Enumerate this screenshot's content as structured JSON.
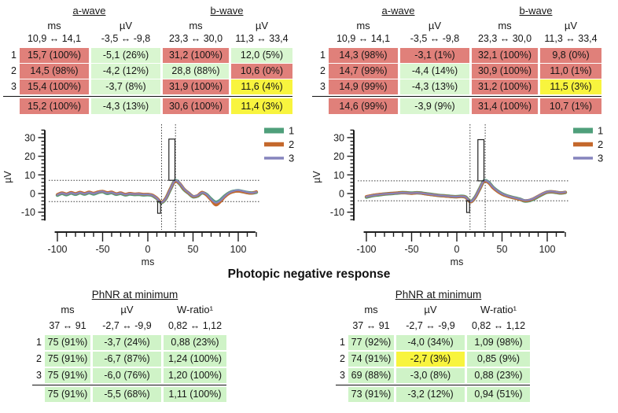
{
  "section_title": "Photopic negative response",
  "status_colors": {
    "red": "#e0807a",
    "green": "#d9f6d0",
    "yellow": "#f8f43e",
    "green_phnr": "#cff3c7"
  },
  "wave_tables": [
    {
      "groups": [
        "a-wave",
        "b-wave"
      ],
      "units": [
        "ms",
        "µV",
        "ms",
        "µV"
      ],
      "ranges": [
        "10,9 ↔ 14,1",
        "-3,5 ↔ -9,8",
        "23,3 ↔ 30,0",
        "11,3 ↔ 33,4"
      ],
      "rows": [
        {
          "num": "1",
          "cells": [
            {
              "text": "15,7 (100%)",
              "status": "red"
            },
            {
              "text": "-5,1 (26%)",
              "status": "green"
            },
            {
              "text": "31,2 (100%)",
              "status": "red"
            },
            {
              "text": "12,0 (5%)",
              "status": "green"
            }
          ]
        },
        {
          "num": "2",
          "cells": [
            {
              "text": "14,5 (98%)",
              "status": "red"
            },
            {
              "text": "-4,2 (12%)",
              "status": "green"
            },
            {
              "text": "28,8 (88%)",
              "status": "green"
            },
            {
              "text": "10,6 (0%)",
              "status": "red"
            }
          ]
        },
        {
          "num": "3",
          "cells": [
            {
              "text": "15,4 (100%)",
              "status": "red"
            },
            {
              "text": "-3,7 (8%)",
              "status": "green"
            },
            {
              "text": "31,9 (100%)",
              "status": "red"
            },
            {
              "text": "11,6 (4%)",
              "status": "yellow"
            }
          ]
        }
      ],
      "summary": [
        {
          "text": "15,2 (100%)",
          "status": "red"
        },
        {
          "text": "-4,3 (13%)",
          "status": "green"
        },
        {
          "text": "30,6 (100%)",
          "status": "red"
        },
        {
          "text": "11,4 (3%)",
          "status": "yellow"
        }
      ]
    },
    {
      "groups": [
        "a-wave",
        "b-wave"
      ],
      "units": [
        "ms",
        "µV",
        "ms",
        "µV"
      ],
      "ranges": [
        "10,9 ↔ 14,1",
        "-3,5 ↔ -9,8",
        "23,3 ↔ 30,0",
        "11,3 ↔ 33,4"
      ],
      "rows": [
        {
          "num": "1",
          "cells": [
            {
              "text": "14,3 (98%)",
              "status": "red"
            },
            {
              "text": "-3,1 (1%)",
              "status": "red"
            },
            {
              "text": "32,1 (100%)",
              "status": "red"
            },
            {
              "text": "9,8 (0%)",
              "status": "red"
            }
          ]
        },
        {
          "num": "2",
          "cells": [
            {
              "text": "14,7 (99%)",
              "status": "red"
            },
            {
              "text": "-4,4 (14%)",
              "status": "green"
            },
            {
              "text": "30,9 (100%)",
              "status": "red"
            },
            {
              "text": "11,0 (1%)",
              "status": "red"
            }
          ]
        },
        {
          "num": "3",
          "cells": [
            {
              "text": "14,9 (99%)",
              "status": "red"
            },
            {
              "text": "-4,3 (13%)",
              "status": "green"
            },
            {
              "text": "31,2 (100%)",
              "status": "red"
            },
            {
              "text": "11,5 (3%)",
              "status": "yellow"
            }
          ]
        }
      ],
      "summary": [
        {
          "text": "14,6 (99%)",
          "status": "red"
        },
        {
          "text": "-3,9 (9%)",
          "status": "green"
        },
        {
          "text": "31,4 (100%)",
          "status": "red"
        },
        {
          "text": "10,7 (1%)",
          "status": "red"
        }
      ]
    }
  ],
  "phnr_tables": [
    {
      "title": "PhNR at minimum",
      "units": [
        "ms",
        "µV",
        "W-ratio¹"
      ],
      "ranges": [
        "37 ↔ 91",
        "-2,7 ↔ -9,9",
        "0,82 ↔ 1,12"
      ],
      "rows": [
        {
          "num": "1",
          "cells": [
            {
              "text": "75 (91%)",
              "status": "green_phnr"
            },
            {
              "text": "-3,7 (24%)",
              "status": "green_phnr"
            },
            {
              "text": "0,88 (23%)",
              "status": "green_phnr"
            }
          ]
        },
        {
          "num": "2",
          "cells": [
            {
              "text": "75 (91%)",
              "status": "green_phnr"
            },
            {
              "text": "-6,7 (87%)",
              "status": "green_phnr"
            },
            {
              "text": "1,24 (100%)",
              "status": "green_phnr"
            }
          ]
        },
        {
          "num": "3",
          "cells": [
            {
              "text": "75 (91%)",
              "status": "green_phnr"
            },
            {
              "text": "-6,0 (76%)",
              "status": "green_phnr"
            },
            {
              "text": "1,20 (100%)",
              "status": "green_phnr"
            }
          ]
        }
      ],
      "summary": [
        {
          "text": "75 (91%)",
          "status": "green_phnr"
        },
        {
          "text": "-5,5 (68%)",
          "status": "green_phnr"
        },
        {
          "text": "1,11 (100%)",
          "status": "green_phnr"
        }
      ]
    },
    {
      "title": "PhNR at minimum",
      "units": [
        "ms",
        "µV",
        "W-ratio¹"
      ],
      "ranges": [
        "37 ↔ 91",
        "-2,7 ↔ -9,9",
        "0,82 ↔ 1,12"
      ],
      "rows": [
        {
          "num": "1",
          "cells": [
            {
              "text": "77 (92%)",
              "status": "green_phnr"
            },
            {
              "text": "-4,0 (34%)",
              "status": "green_phnr"
            },
            {
              "text": "1,09 (98%)",
              "status": "green_phnr"
            }
          ]
        },
        {
          "num": "2",
          "cells": [
            {
              "text": "74 (91%)",
              "status": "green_phnr"
            },
            {
              "text": "-2,7 (3%)",
              "status": "yellow"
            },
            {
              "text": "0,85 (9%)",
              "status": "green_phnr"
            }
          ]
        },
        {
          "num": "3",
          "cells": [
            {
              "text": "69 (88%)",
              "status": "green_phnr"
            },
            {
              "text": "-3,0 (8%)",
              "status": "green_phnr"
            },
            {
              "text": "0,88 (23%)",
              "status": "green_phnr"
            }
          ]
        }
      ],
      "summary": [
        {
          "text": "73 (91%)",
          "status": "green_phnr"
        },
        {
          "text": "-3,2 (12%)",
          "status": "green_phnr"
        },
        {
          "text": "0,94 (51%)",
          "status": "green_phnr"
        }
      ]
    }
  ],
  "chart_data": [
    {
      "type": "line",
      "title": "",
      "xlabel": "ms",
      "ylabel": "µV",
      "xlim": [
        -100,
        120
      ],
      "ylim": [
        -14,
        34
      ],
      "xticks": [
        -100,
        -50,
        0,
        50,
        100
      ],
      "yticks": [
        -10,
        0,
        10,
        20,
        30
      ],
      "grid": false,
      "legend_position": "upper right",
      "x": [
        -100,
        -95,
        -90,
        -85,
        -80,
        -75,
        -70,
        -65,
        -60,
        -55,
        -50,
        -45,
        -40,
        -35,
        -30,
        -25,
        -20,
        -15,
        -10,
        -5,
        0,
        5,
        10,
        15,
        20,
        25,
        30,
        35,
        40,
        45,
        50,
        55,
        60,
        65,
        70,
        75,
        80,
        85,
        90,
        95,
        100,
        105,
        110,
        115,
        120
      ],
      "series": [
        {
          "name": "1",
          "color": "#4f9f7b",
          "y": [
            -0.9,
            0.1,
            -0.6,
            0.3,
            -0.4,
            0.4,
            -0.3,
            0.5,
            -0.2,
            0.6,
            1.0,
            0.1,
            0.5,
            -0.4,
            0.1,
            -0.7,
            -0.2,
            -0.5,
            -0.4,
            -0.7,
            -0.6,
            -1.0,
            -2.6,
            -4.8,
            -2.6,
            2.4,
            6.8,
            5.3,
            2.2,
            0.2,
            -1.7,
            -1.3,
            0.4,
            -0.6,
            -3.0,
            -4.7,
            -3.7,
            -1.4,
            0.3,
            1.2,
            1.5,
            1.0,
            0.5,
            0.3,
            0.7
          ]
        },
        {
          "name": "2",
          "color": "#c4682c",
          "y": [
            -0.5,
            0.4,
            -0.2,
            0.6,
            0.0,
            0.7,
            0.1,
            0.8,
            0.2,
            0.9,
            1.2,
            0.5,
            0.8,
            -0.1,
            0.4,
            -0.4,
            0.1,
            -0.2,
            -0.1,
            -0.4,
            -0.4,
            -0.8,
            -2.4,
            -4.6,
            -2.4,
            2.6,
            6.5,
            5.5,
            2.4,
            0.3,
            -1.5,
            -1.1,
            0.7,
            -0.9,
            -3.5,
            -6.1,
            -4.5,
            -1.8,
            0.1,
            1.0,
            1.3,
            0.9,
            0.4,
            0.2,
            1.0
          ]
        },
        {
          "name": "3",
          "color": "#8584bd",
          "y": [
            -0.7,
            0.2,
            -0.4,
            0.4,
            -0.2,
            0.5,
            -0.1,
            0.6,
            0.0,
            0.7,
            1.1,
            0.3,
            0.6,
            -0.2,
            0.2,
            -0.5,
            -0.1,
            -0.3,
            -0.2,
            -0.5,
            -0.5,
            -0.9,
            -2.5,
            -4.7,
            -2.5,
            2.5,
            6.9,
            5.6,
            2.5,
            0.4,
            -1.4,
            -1.0,
            0.5,
            -0.5,
            -3.1,
            -4.9,
            -3.9,
            -1.5,
            0.4,
            1.4,
            1.8,
            1.3,
            0.7,
            0.4,
            0.8
          ]
        }
      ],
      "hlines": [
        7.1,
        -4.3
      ],
      "vlines": [
        15.2,
        30.6
      ],
      "boxes": [
        {
          "x0": 10.9,
          "x1": 14.1,
          "y0": -10.6,
          "y1": -4.3
        },
        {
          "x0": 23.3,
          "x1": 30.0,
          "y0": 7.1,
          "y1": 29.2
        }
      ]
    },
    {
      "type": "line",
      "title": "",
      "xlabel": "ms",
      "ylabel": "µV",
      "xlim": [
        -100,
        120
      ],
      "ylim": [
        -14,
        34
      ],
      "xticks": [
        -100,
        -50,
        0,
        50,
        100
      ],
      "yticks": [
        -10,
        0,
        10,
        20,
        30
      ],
      "grid": false,
      "legend_position": "upper right",
      "x": [
        -100,
        -95,
        -90,
        -85,
        -80,
        -75,
        -70,
        -65,
        -60,
        -55,
        -50,
        -45,
        -40,
        -35,
        -30,
        -25,
        -20,
        -15,
        -10,
        -5,
        0,
        5,
        10,
        15,
        20,
        25,
        30,
        35,
        40,
        45,
        50,
        55,
        60,
        65,
        70,
        75,
        80,
        85,
        90,
        95,
        100,
        105,
        110,
        115,
        120
      ],
      "series": [
        {
          "name": "1",
          "color": "#4f9f7b",
          "y": [
            -1.9,
            -1.3,
            -0.9,
            -0.6,
            -0.3,
            -0.1,
            0.1,
            0.3,
            0.5,
            0.4,
            0.2,
            0.4,
            0.3,
            -0.1,
            -0.4,
            -0.7,
            -1.0,
            -1.2,
            -1.4,
            -1.6,
            -1.7,
            -1.5,
            -2.0,
            -4.4,
            -2.2,
            2.3,
            6.7,
            6.0,
            3.3,
            1.3,
            -0.2,
            -1.2,
            -1.9,
            -2.5,
            -3.1,
            -4.0,
            -3.8,
            -2.9,
            -1.6,
            -0.3,
            0.7,
            0.9,
            0.6,
            0.3,
            0.6
          ]
        },
        {
          "name": "2",
          "color": "#c4682c",
          "y": [
            -1.6,
            -1.1,
            -0.7,
            -0.4,
            -0.2,
            0.0,
            0.2,
            0.4,
            0.4,
            0.3,
            0.1,
            0.3,
            0.2,
            -0.2,
            -0.5,
            -0.8,
            -1.1,
            -1.3,
            -1.5,
            -1.7,
            -1.8,
            -1.6,
            -2.1,
            -4.5,
            -2.3,
            2.2,
            6.5,
            5.8,
            3.1,
            1.1,
            -0.4,
            -1.3,
            -2.0,
            -2.6,
            -3.2,
            -3.8,
            -3.6,
            -2.7,
            -1.4,
            -0.1,
            0.8,
            1.0,
            0.7,
            0.4,
            0.7
          ]
        },
        {
          "name": "3",
          "color": "#8584bd",
          "y": [
            -1.7,
            -1.2,
            -0.8,
            -0.5,
            -0.2,
            -0.1,
            0.1,
            0.3,
            0.4,
            0.3,
            0.2,
            0.4,
            0.2,
            -0.1,
            -0.4,
            -0.7,
            -1.0,
            -1.2,
            -1.4,
            -1.6,
            -1.7,
            -1.5,
            -2.0,
            -4.3,
            -2.1,
            2.4,
            6.8,
            6.1,
            3.4,
            1.4,
            -0.1,
            -1.1,
            -1.8,
            -2.4,
            -3.0,
            -3.6,
            -3.4,
            -2.6,
            -1.3,
            0.0,
            0.9,
            1.1,
            0.8,
            0.5,
            0.8
          ]
        }
      ],
      "hlines": [
        6.8,
        -3.9
      ],
      "vlines": [
        14.6,
        31.4
      ],
      "boxes": [
        {
          "x0": 10.9,
          "x1": 14.1,
          "y0": -10.2,
          "y1": -3.9
        },
        {
          "x0": 23.3,
          "x1": 30.0,
          "y0": 6.8,
          "y1": 28.9
        }
      ]
    }
  ]
}
